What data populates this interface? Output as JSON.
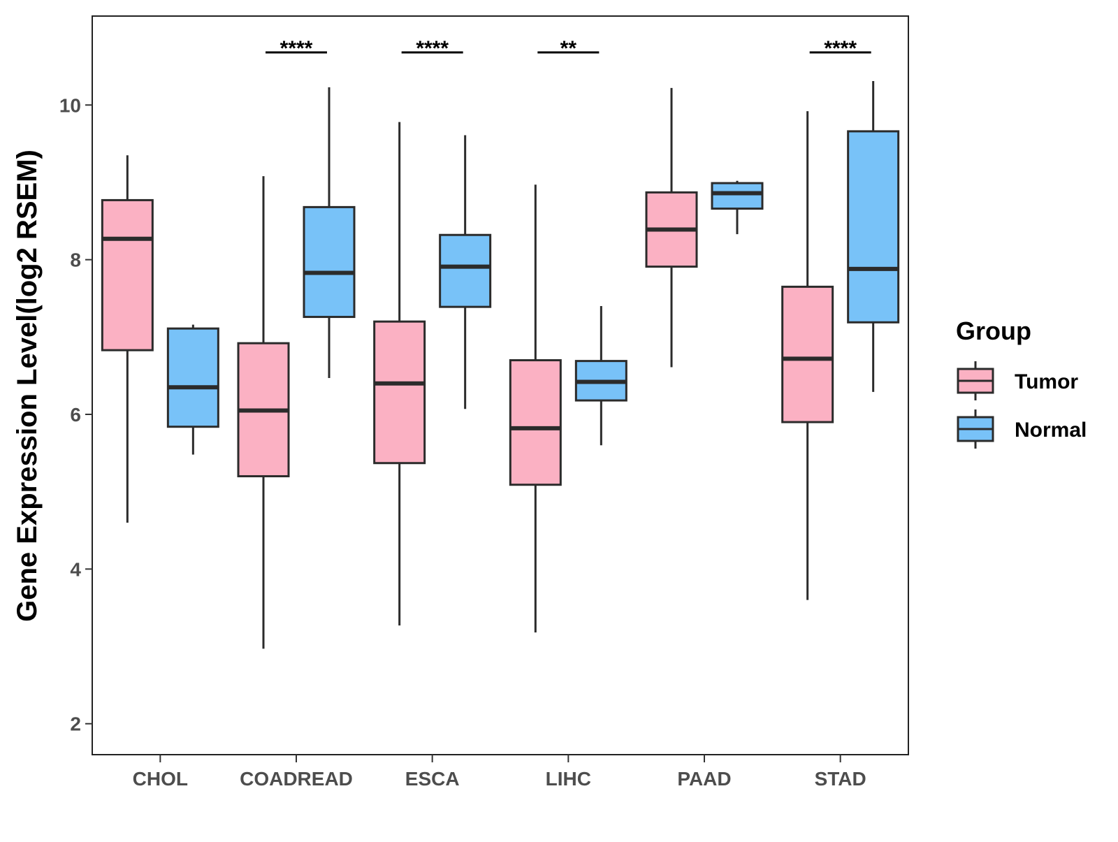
{
  "chart_data": {
    "type": "boxplot",
    "title": "",
    "xlabel": "",
    "ylabel": "Gene Expression Level(log2 RSEM)",
    "ylim": [
      1.6,
      11.15
    ],
    "yticks": [
      2,
      4,
      6,
      8,
      10
    ],
    "ytick_labels": [
      "2",
      "4",
      "6",
      "8",
      "10"
    ],
    "grid": false,
    "categories": [
      "CHOL",
      "COADREAD",
      "ESCA",
      "LIHC",
      "PAAD",
      "STAD"
    ],
    "legend": {
      "title": "Group",
      "position": "right",
      "entries": [
        {
          "name": "Tumor",
          "color": "#FBB1C3"
        },
        {
          "name": "Normal",
          "color": "#78C2F8"
        }
      ]
    },
    "series": [
      {
        "name": "Tumor",
        "color": "#FBB1C3",
        "boxes": [
          {
            "category": "CHOL",
            "whisker_low": 4.6,
            "q1": 6.83,
            "median": 8.27,
            "q3": 8.77,
            "whisker_high": 9.35
          },
          {
            "category": "COADREAD",
            "whisker_low": 2.97,
            "q1": 5.2,
            "median": 6.05,
            "q3": 6.92,
            "whisker_high": 9.08
          },
          {
            "category": "ESCA",
            "whisker_low": 3.27,
            "q1": 5.37,
            "median": 6.4,
            "q3": 7.2,
            "whisker_high": 9.78
          },
          {
            "category": "LIHC",
            "whisker_low": 3.18,
            "q1": 5.09,
            "median": 5.82,
            "q3": 6.7,
            "whisker_high": 8.97
          },
          {
            "category": "PAAD",
            "whisker_low": 6.61,
            "q1": 7.91,
            "median": 8.39,
            "q3": 8.87,
            "whisker_high": 10.22
          },
          {
            "category": "STAD",
            "whisker_low": 3.6,
            "q1": 5.9,
            "median": 6.72,
            "q3": 7.65,
            "whisker_high": 9.92
          }
        ]
      },
      {
        "name": "Normal",
        "color": "#78C2F8",
        "boxes": [
          {
            "category": "CHOL",
            "whisker_low": 5.48,
            "q1": 5.84,
            "median": 6.35,
            "q3": 7.11,
            "whisker_high": 7.16
          },
          {
            "category": "COADREAD",
            "whisker_low": 6.47,
            "q1": 7.26,
            "median": 7.83,
            "q3": 8.68,
            "whisker_high": 10.23
          },
          {
            "category": "ESCA",
            "whisker_low": 6.07,
            "q1": 7.39,
            "median": 7.91,
            "q3": 8.32,
            "whisker_high": 9.61
          },
          {
            "category": "LIHC",
            "whisker_low": 5.6,
            "q1": 6.18,
            "median": 6.42,
            "q3": 6.69,
            "whisker_high": 7.4
          },
          {
            "category": "PAAD",
            "whisker_low": 8.33,
            "q1": 8.66,
            "median": 8.86,
            "q3": 8.99,
            "whisker_high": 9.02
          },
          {
            "category": "STAD",
            "whisker_low": 6.29,
            "q1": 7.19,
            "median": 7.88,
            "q3": 9.66,
            "whisker_high": 10.31
          }
        ]
      }
    ],
    "annotations": [
      {
        "category": "COADREAD",
        "label": "****",
        "y": 10.68
      },
      {
        "category": "ESCA",
        "label": "****",
        "y": 10.68
      },
      {
        "category": "LIHC",
        "label": "**",
        "y": 10.68
      },
      {
        "category": "STAD",
        "label": "****",
        "y": 10.68
      }
    ]
  }
}
